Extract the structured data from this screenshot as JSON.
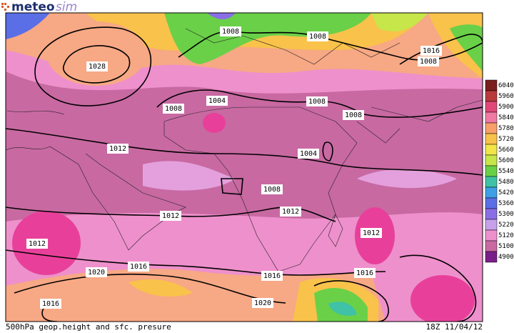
{
  "logo": {
    "brand": "meteo",
    "suffix": "sim"
  },
  "footer": {
    "title": "500hPa geop.height and sfc. presure",
    "time": "18Z 11/04/12"
  },
  "colorbar": [
    {
      "label": "6040",
      "color": "#7a1e1e"
    },
    {
      "label": "5960",
      "color": "#b83a3a"
    },
    {
      "label": "5900",
      "color": "#e0487a"
    },
    {
      "label": "5840",
      "color": "#f07aa4"
    },
    {
      "label": "5780",
      "color": "#f7a06a"
    },
    {
      "label": "5720",
      "color": "#f9c24a"
    },
    {
      "label": "5660",
      "color": "#f1e54a"
    },
    {
      "label": "5600",
      "color": "#c6e64a"
    },
    {
      "label": "5540",
      "color": "#6ad048"
    },
    {
      "label": "5480",
      "color": "#3fc2a6"
    },
    {
      "label": "5420",
      "color": "#3f9fe4"
    },
    {
      "label": "5360",
      "color": "#5a6ee6"
    },
    {
      "label": "5300",
      "color": "#8a6ee6"
    },
    {
      "label": "5220",
      "color": "#c7a0ea"
    },
    {
      "label": "5120",
      "color": "#ee90cc"
    },
    {
      "label": "5100",
      "color": "#c869a2"
    },
    {
      "label": "4900",
      "color": "#7a1e8a"
    }
  ],
  "isobars": [
    "1008",
    "1008",
    "1016",
    "1008",
    "1028",
    "1004",
    "1008",
    "1008",
    "1008",
    "1012",
    "1004",
    "1008",
    "1012",
    "1012",
    "1012",
    "1016",
    "1012",
    "1016",
    "1020",
    "1016",
    "1016",
    "1020"
  ]
}
